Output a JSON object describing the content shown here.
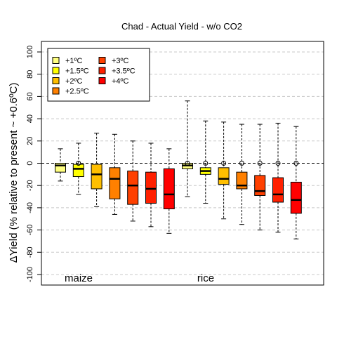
{
  "chart_data": {
    "type": "boxplot",
    "title": "Chad - Actual Yield - w/o CO2",
    "ylabel": "ΔYield (% relative to present ~ +0.6ºC)",
    "xlabel": "",
    "ylim": [
      -105,
      105
    ],
    "yticks": [
      -100,
      -80,
      -60,
      -40,
      -20,
      0,
      20,
      40,
      60,
      80,
      100
    ],
    "grid": "horizontal dashed",
    "legend_position": "top-left",
    "legend": [
      {
        "label": "+1ºC",
        "color": "#ffff80"
      },
      {
        "label": "+1.5ºC",
        "color": "#ffff00"
      },
      {
        "label": "+2ºC",
        "color": "#ffbf00"
      },
      {
        "label": "+2.5ºC",
        "color": "#ff8000"
      },
      {
        "label": "+3ºC",
        "color": "#ff4000"
      },
      {
        "label": "+3.5ºC",
        "color": "#ff2000"
      },
      {
        "label": "+4ºC",
        "color": "#ff0000"
      }
    ],
    "groups": [
      {
        "name": "maize",
        "boxes": [
          {
            "level": "+1ºC",
            "whisker_low": -16,
            "q1": -8,
            "median": -2,
            "q3": 0,
            "whisker_high": 13,
            "outliers": []
          },
          {
            "level": "+1.5ºC",
            "whisker_low": -28,
            "q1": -12,
            "median": -5,
            "q3": -1,
            "whisker_high": 18,
            "outliers": [
              0
            ]
          },
          {
            "level": "+2ºC",
            "whisker_low": -39,
            "q1": -23,
            "median": -10,
            "q3": -1,
            "whisker_high": 27,
            "outliers": []
          },
          {
            "level": "+2.5ºC",
            "whisker_low": -46,
            "q1": -32,
            "median": -14,
            "q3": -4,
            "whisker_high": 26,
            "outliers": []
          },
          {
            "level": "+3ºC",
            "whisker_low": -52,
            "q1": -37,
            "median": -20,
            "q3": -7,
            "whisker_high": 20,
            "outliers": []
          },
          {
            "level": "+3.5ºC",
            "whisker_low": -57,
            "q1": -36,
            "median": -23,
            "q3": -8,
            "whisker_high": 18,
            "outliers": []
          },
          {
            "level": "+4ºC",
            "whisker_low": -63,
            "q1": -41,
            "median": -28,
            "q3": -5,
            "whisker_high": 13,
            "outliers": []
          }
        ]
      },
      {
        "name": "rice",
        "boxes": [
          {
            "level": "+1ºC",
            "whisker_low": -30,
            "q1": -5,
            "median": -2,
            "q3": 0,
            "whisker_high": 56,
            "outliers": [
              0
            ]
          },
          {
            "level": "+1.5ºC",
            "whisker_low": -36,
            "q1": -10,
            "median": -7,
            "q3": -4,
            "whisker_high": 38,
            "outliers": [
              0
            ]
          },
          {
            "level": "+2ºC",
            "whisker_low": -50,
            "q1": -19,
            "median": -14,
            "q3": -4,
            "whisker_high": 37,
            "outliers": [
              0
            ]
          },
          {
            "level": "+2.5ºC",
            "whisker_low": -55,
            "q1": -23,
            "median": -20,
            "q3": -8,
            "whisker_high": 35,
            "outliers": [
              0
            ]
          },
          {
            "level": "+3ºC",
            "whisker_low": -60,
            "q1": -29,
            "median": -25,
            "q3": -11,
            "whisker_high": 35,
            "outliers": [
              0
            ]
          },
          {
            "level": "+3.5ºC",
            "whisker_low": -62,
            "q1": -35,
            "median": -28,
            "q3": -13,
            "whisker_high": 36,
            "outliers": [
              0
            ]
          },
          {
            "level": "+4ºC",
            "whisker_low": -68,
            "q1": -45,
            "median": -33,
            "q3": -17,
            "whisker_high": 33,
            "outliers": [
              0
            ]
          }
        ]
      }
    ]
  }
}
